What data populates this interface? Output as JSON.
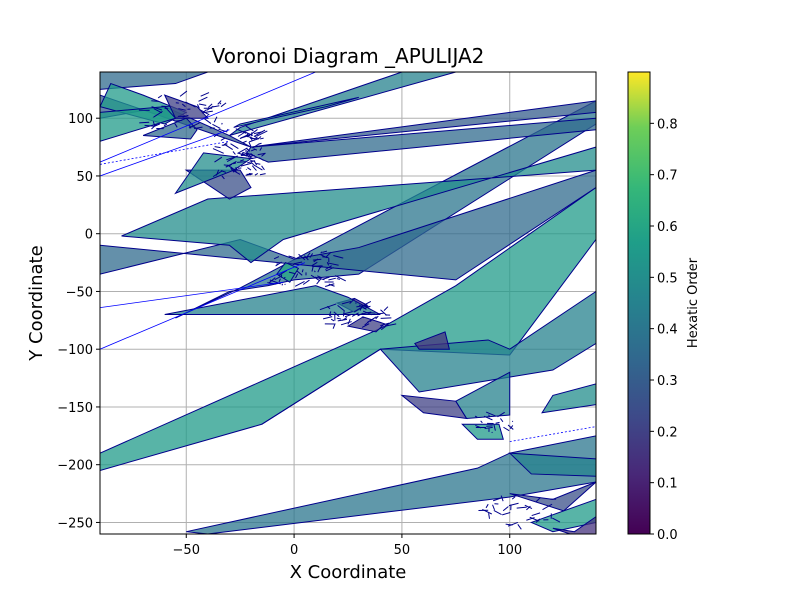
{
  "chart_data": {
    "type": "voronoi",
    "title": "Voronoi Diagram _APULIJA2",
    "xlabel": "X Coordinate",
    "ylabel": "Y Coordinate",
    "xlim": [
      -90,
      140
    ],
    "ylim": [
      -260,
      140
    ],
    "xticks": [
      -50,
      0,
      50,
      100
    ],
    "yticks": [
      -250,
      -200,
      -150,
      -100,
      -50,
      0,
      50,
      100
    ],
    "grid": true,
    "edge_color": "#00008b",
    "colorbar": {
      "label": "Hexatic Order",
      "colormap": "viridis",
      "range": [
        0.0,
        0.9
      ],
      "ticks": [
        0.0,
        0.1,
        0.2,
        0.3,
        0.4,
        0.5,
        0.6,
        0.7,
        0.8
      ]
    },
    "cells": [
      {
        "order": 0.55,
        "vertices": [
          [
            -90,
            -205
          ],
          [
            -15,
            -165
          ],
          [
            40,
            -100
          ],
          [
            100,
            -105
          ],
          [
            140,
            -5
          ],
          [
            140,
            40
          ],
          [
            75,
            -45
          ],
          [
            40,
            -82
          ],
          [
            -90,
            -190
          ]
        ]
      },
      {
        "order": 0.45,
        "vertices": [
          [
            -15,
            -165
          ],
          [
            40,
            -100
          ],
          [
            90,
            -92
          ],
          [
            100,
            -100
          ],
          [
            140,
            -50
          ],
          [
            140,
            -95
          ],
          [
            120,
            -118
          ],
          [
            58,
            -137
          ],
          [
            40,
            -100
          ]
        ]
      },
      {
        "order": 0.4,
        "vertices": [
          [
            -55,
            -73
          ],
          [
            -30,
            -50
          ],
          [
            -12,
            -45
          ],
          [
            0,
            -40
          ],
          [
            30,
            -35
          ],
          [
            140,
            95
          ],
          [
            140,
            115
          ],
          [
            -25,
            -47
          ]
        ]
      },
      {
        "order": 0.35,
        "vertices": [
          [
            -90,
            -35
          ],
          [
            -25,
            -5
          ],
          [
            0,
            -22
          ],
          [
            30,
            -12
          ],
          [
            140,
            55
          ],
          [
            140,
            40
          ],
          [
            75,
            -40
          ],
          [
            -90,
            -10
          ]
        ]
      },
      {
        "order": 0.5,
        "vertices": [
          [
            -80,
            -2
          ],
          [
            -30,
            -10
          ],
          [
            -20,
            -25
          ],
          [
            -5,
            -5
          ],
          [
            140,
            75
          ],
          [
            140,
            55
          ],
          [
            -40,
            30
          ]
        ]
      },
      {
        "order": 0.3,
        "vertices": [
          [
            -90,
            100
          ],
          [
            -60,
            110
          ],
          [
            -30,
            85
          ],
          [
            -20,
            75
          ],
          [
            140,
            105
          ],
          [
            140,
            115
          ],
          [
            -20,
            75
          ],
          [
            -90,
            120
          ]
        ]
      },
      {
        "order": 0.35,
        "vertices": [
          [
            -20,
            75
          ],
          [
            140,
            100
          ],
          [
            140,
            90
          ],
          [
            -12,
            62
          ],
          [
            -22,
            70
          ]
        ]
      },
      {
        "order": 0.45,
        "vertices": [
          [
            -30,
            85
          ],
          [
            75,
            140
          ],
          [
            50,
            140
          ],
          [
            -25,
            92
          ]
        ]
      },
      {
        "order": 0.65,
        "vertices": [
          [
            -28,
            92
          ],
          [
            -10,
            100
          ],
          [
            15,
            110
          ],
          [
            30,
            118
          ],
          [
            -25,
            95
          ]
        ]
      },
      {
        "order": 0.35,
        "vertices": [
          [
            -55,
            130
          ],
          [
            -40,
            140
          ],
          [
            -90,
            140
          ],
          [
            -90,
            125
          ]
        ]
      },
      {
        "order": 0.55,
        "vertices": [
          [
            -85,
            130
          ],
          [
            -70,
            120
          ],
          [
            -50,
            105
          ],
          [
            -60,
            95
          ],
          [
            -90,
            110
          ]
        ]
      },
      {
        "order": 0.2,
        "vertices": [
          [
            -60,
            120
          ],
          [
            -45,
            110
          ],
          [
            -40,
            100
          ],
          [
            -55,
            100
          ]
        ]
      },
      {
        "order": 0.55,
        "vertices": [
          [
            -90,
            80
          ],
          [
            -55,
            100
          ],
          [
            -60,
            110
          ],
          [
            -90,
            105
          ]
        ]
      },
      {
        "order": 0.35,
        "vertices": [
          [
            -70,
            85
          ],
          [
            -48,
            82
          ],
          [
            -45,
            90
          ],
          [
            -50,
            100
          ]
        ]
      },
      {
        "order": 0.25,
        "vertices": [
          [
            -50,
            55
          ],
          [
            -30,
            30
          ],
          [
            -20,
            40
          ],
          [
            -25,
            55
          ]
        ]
      },
      {
        "order": 0.5,
        "vertices": [
          [
            -55,
            35
          ],
          [
            -28,
            55
          ],
          [
            -20,
            65
          ],
          [
            -42,
            70
          ]
        ]
      },
      {
        "order": 0.6,
        "vertices": [
          [
            -8,
            -35
          ],
          [
            -2,
            -42
          ],
          [
            2,
            -30
          ],
          [
            -4,
            -25
          ]
        ]
      },
      {
        "order": 0.15,
        "vertices": [
          [
            20,
            -60
          ],
          [
            28,
            -68
          ],
          [
            34,
            -62
          ],
          [
            28,
            -56
          ]
        ]
      },
      {
        "order": 0.2,
        "vertices": [
          [
            25,
            -80
          ],
          [
            38,
            -85
          ],
          [
            42,
            -78
          ],
          [
            32,
            -72
          ]
        ]
      },
      {
        "order": 0.15,
        "vertices": [
          [
            56,
            -95
          ],
          [
            70,
            -85
          ],
          [
            72,
            -100
          ],
          [
            58,
            -100
          ]
        ]
      },
      {
        "order": 0.45,
        "vertices": [
          [
            -60,
            -70
          ],
          [
            10,
            -45
          ],
          [
            25,
            -55
          ],
          [
            40,
            -70
          ]
        ]
      },
      {
        "order": 0.2,
        "vertices": [
          [
            50,
            -140
          ],
          [
            75,
            -145
          ],
          [
            80,
            -160
          ],
          [
            60,
            -155
          ]
        ]
      },
      {
        "order": 0.45,
        "vertices": [
          [
            75,
            -145
          ],
          [
            100,
            -120
          ],
          [
            100,
            -157
          ],
          [
            80,
            -160
          ]
        ]
      },
      {
        "order": 0.55,
        "vertices": [
          [
            78,
            -165
          ],
          [
            95,
            -165
          ],
          [
            97,
            -178
          ],
          [
            85,
            -178
          ]
        ]
      },
      {
        "order": 0.4,
        "vertices": [
          [
            -50,
            -258
          ],
          [
            85,
            -203
          ],
          [
            100,
            -190
          ],
          [
            140,
            -175
          ],
          [
            140,
            -215
          ],
          [
            100,
            -228
          ],
          [
            -40,
            -260
          ]
        ]
      },
      {
        "order": 0.25,
        "vertices": [
          [
            100,
            -225
          ],
          [
            120,
            -230
          ],
          [
            140,
            -215
          ],
          [
            125,
            -240
          ]
        ]
      },
      {
        "order": 0.55,
        "vertices": [
          [
            110,
            -250
          ],
          [
            140,
            -230
          ],
          [
            140,
            -250
          ],
          [
            120,
            -258
          ]
        ]
      },
      {
        "order": 0.15,
        "vertices": [
          [
            120,
            -255
          ],
          [
            130,
            -258
          ],
          [
            140,
            -245
          ],
          [
            140,
            -260
          ],
          [
            128,
            -260
          ]
        ]
      },
      {
        "order": 0.45,
        "vertices": [
          [
            100,
            -190
          ],
          [
            140,
            -195
          ],
          [
            140,
            -210
          ],
          [
            110,
            -208
          ]
        ]
      },
      {
        "order": 0.5,
        "vertices": [
          [
            115,
            -155
          ],
          [
            140,
            -148
          ],
          [
            140,
            -130
          ],
          [
            120,
            -140
          ]
        ]
      }
    ],
    "open_edges": [
      {
        "from": [
          -90,
          60
        ],
        "to": [
          -30,
          80
        ],
        "dashed": true
      },
      {
        "from": [
          -90,
          50
        ],
        "to": [
          -30,
          90
        ],
        "dashed": false
      },
      {
        "from": [
          -90,
          62
        ],
        "to": [
          10,
          140
        ],
        "dashed": false
      },
      {
        "from": [
          -90,
          -64
        ],
        "to": [
          -5,
          -42
        ],
        "dashed": false
      },
      {
        "from": [
          -90,
          -100
        ],
        "to": [
          5,
          -25
        ],
        "dashed": false
      },
      {
        "from": [
          100,
          -180
        ],
        "to": [
          140,
          -167
        ],
        "dashed": true
      }
    ],
    "junctions": [
      {
        "center": [
          -25,
          70
        ],
        "spread": [
          20,
          40
        ],
        "count": 90
      },
      {
        "center": [
          5,
          -30
        ],
        "spread": [
          30,
          30
        ],
        "count": 60
      },
      {
        "center": [
          30,
          -70
        ],
        "spread": [
          30,
          20
        ],
        "count": 50
      },
      {
        "center": [
          -50,
          105
        ],
        "spread": [
          35,
          30
        ],
        "count": 50
      },
      {
        "center": [
          105,
          -240
        ],
        "spread": [
          30,
          25
        ],
        "count": 30
      },
      {
        "center": [
          92,
          -165
        ],
        "spread": [
          20,
          15
        ],
        "count": 20
      }
    ]
  }
}
